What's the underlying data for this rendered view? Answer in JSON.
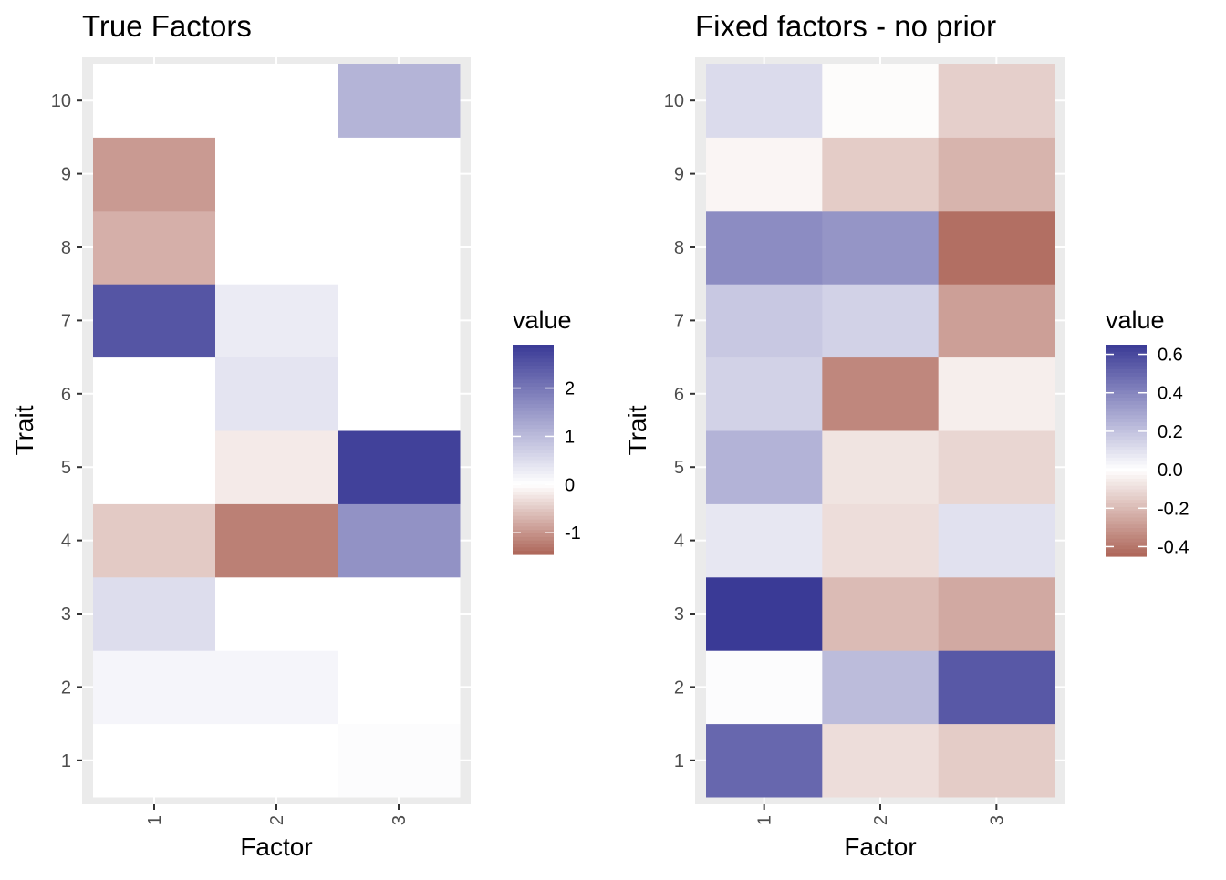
{
  "chart_data": [
    {
      "type": "heatmap",
      "title": "True Factors",
      "xlabel": "Factor",
      "ylabel": "Trait",
      "x_categories": [
        "1",
        "2",
        "3"
      ],
      "y_categories": [
        "1",
        "2",
        "3",
        "4",
        "5",
        "6",
        "7",
        "8",
        "9",
        "10"
      ],
      "cells": [
        {
          "x": "1",
          "y": "1",
          "value": 0.0
        },
        {
          "x": "2",
          "y": "1",
          "value": 0.0
        },
        {
          "x": "3",
          "y": "1",
          "value": 0.05
        },
        {
          "x": "1",
          "y": "2",
          "value": 0.15
        },
        {
          "x": "2",
          "y": "2",
          "value": 0.15
        },
        {
          "x": "3",
          "y": "2",
          "value": 0.0
        },
        {
          "x": "1",
          "y": "3",
          "value": 0.5
        },
        {
          "x": "2",
          "y": "3",
          "value": 0.0
        },
        {
          "x": "3",
          "y": "3",
          "value": 0.0
        },
        {
          "x": "1",
          "y": "4",
          "value": -0.5
        },
        {
          "x": "2",
          "y": "4",
          "value": -1.2
        },
        {
          "x": "3",
          "y": "4",
          "value": 1.6
        },
        {
          "x": "1",
          "y": "5",
          "value": 0.0
        },
        {
          "x": "2",
          "y": "5",
          "value": -0.2
        },
        {
          "x": "3",
          "y": "5",
          "value": 2.8
        },
        {
          "x": "1",
          "y": "6",
          "value": 0.0
        },
        {
          "x": "2",
          "y": "6",
          "value": 0.4
        },
        {
          "x": "3",
          "y": "6",
          "value": 0.0
        },
        {
          "x": "1",
          "y": "7",
          "value": 2.5
        },
        {
          "x": "2",
          "y": "7",
          "value": 0.3
        },
        {
          "x": "3",
          "y": "7",
          "value": 0.0
        },
        {
          "x": "1",
          "y": "8",
          "value": -0.75
        },
        {
          "x": "2",
          "y": "8",
          "value": 0.0
        },
        {
          "x": "3",
          "y": "8",
          "value": 0.0
        },
        {
          "x": "1",
          "y": "9",
          "value": -0.95
        },
        {
          "x": "2",
          "y": "9",
          "value": 0.0
        },
        {
          "x": "3",
          "y": "9",
          "value": 0.0
        },
        {
          "x": "1",
          "y": "10",
          "value": 0.0
        },
        {
          "x": "2",
          "y": "10",
          "value": 0.0
        },
        {
          "x": "3",
          "y": "10",
          "value": 1.1
        }
      ],
      "legend": {
        "title": "value",
        "placement": "right",
        "min": -1.45,
        "max": 2.9,
        "breaks": [
          -1,
          0,
          1,
          2
        ],
        "break_labels": [
          "-1",
          "0",
          "1",
          "2"
        ],
        "low_color": "#ad6558",
        "mid_color": "#ffffff",
        "high_color": "#3a3a96"
      },
      "grid": true
    },
    {
      "type": "heatmap",
      "title": "Fixed factors - no prior",
      "xlabel": "Factor",
      "ylabel": "Trait",
      "x_categories": [
        "1",
        "2",
        "3"
      ],
      "y_categories": [
        "1",
        "2",
        "3",
        "4",
        "5",
        "6",
        "7",
        "8",
        "9",
        "10"
      ],
      "cells": [
        {
          "x": "1",
          "y": "1",
          "value": 0.5
        },
        {
          "x": "2",
          "y": "1",
          "value": -0.1
        },
        {
          "x": "3",
          "y": "1",
          "value": -0.15
        },
        {
          "x": "1",
          "y": "2",
          "value": 0.01
        },
        {
          "x": "2",
          "y": "2",
          "value": 0.22
        },
        {
          "x": "3",
          "y": "2",
          "value": 0.55
        },
        {
          "x": "1",
          "y": "3",
          "value": 0.65
        },
        {
          "x": "2",
          "y": "3",
          "value": -0.2
        },
        {
          "x": "3",
          "y": "3",
          "value": -0.25
        },
        {
          "x": "1",
          "y": "4",
          "value": 0.08
        },
        {
          "x": "2",
          "y": "4",
          "value": -0.1
        },
        {
          "x": "3",
          "y": "4",
          "value": 0.1
        },
        {
          "x": "1",
          "y": "5",
          "value": 0.25
        },
        {
          "x": "2",
          "y": "5",
          "value": -0.08
        },
        {
          "x": "3",
          "y": "5",
          "value": -0.12
        },
        {
          "x": "1",
          "y": "6",
          "value": 0.15
        },
        {
          "x": "2",
          "y": "6",
          "value": -0.35
        },
        {
          "x": "3",
          "y": "6",
          "value": -0.05
        },
        {
          "x": "1",
          "y": "7",
          "value": 0.18
        },
        {
          "x": "2",
          "y": "7",
          "value": 0.15
        },
        {
          "x": "3",
          "y": "7",
          "value": -0.28
        },
        {
          "x": "1",
          "y": "8",
          "value": 0.38
        },
        {
          "x": "2",
          "y": "8",
          "value": 0.35
        },
        {
          "x": "3",
          "y": "8",
          "value": -0.42
        },
        {
          "x": "1",
          "y": "9",
          "value": -0.03
        },
        {
          "x": "2",
          "y": "9",
          "value": -0.15
        },
        {
          "x": "3",
          "y": "9",
          "value": -0.22
        },
        {
          "x": "1",
          "y": "10",
          "value": 0.12
        },
        {
          "x": "2",
          "y": "10",
          "value": -0.01
        },
        {
          "x": "3",
          "y": "10",
          "value": -0.14
        }
      ],
      "legend": {
        "title": "value",
        "placement": "right",
        "min": -0.45,
        "max": 0.65,
        "breaks": [
          -0.4,
          -0.2,
          0.0,
          0.2,
          0.4,
          0.6
        ],
        "break_labels": [
          "-0.4",
          "-0.2",
          "0.0",
          "0.2",
          "0.4",
          "0.6"
        ],
        "low_color": "#ad6558",
        "mid_color": "#ffffff",
        "high_color": "#3a3a96"
      },
      "grid": true
    }
  ]
}
